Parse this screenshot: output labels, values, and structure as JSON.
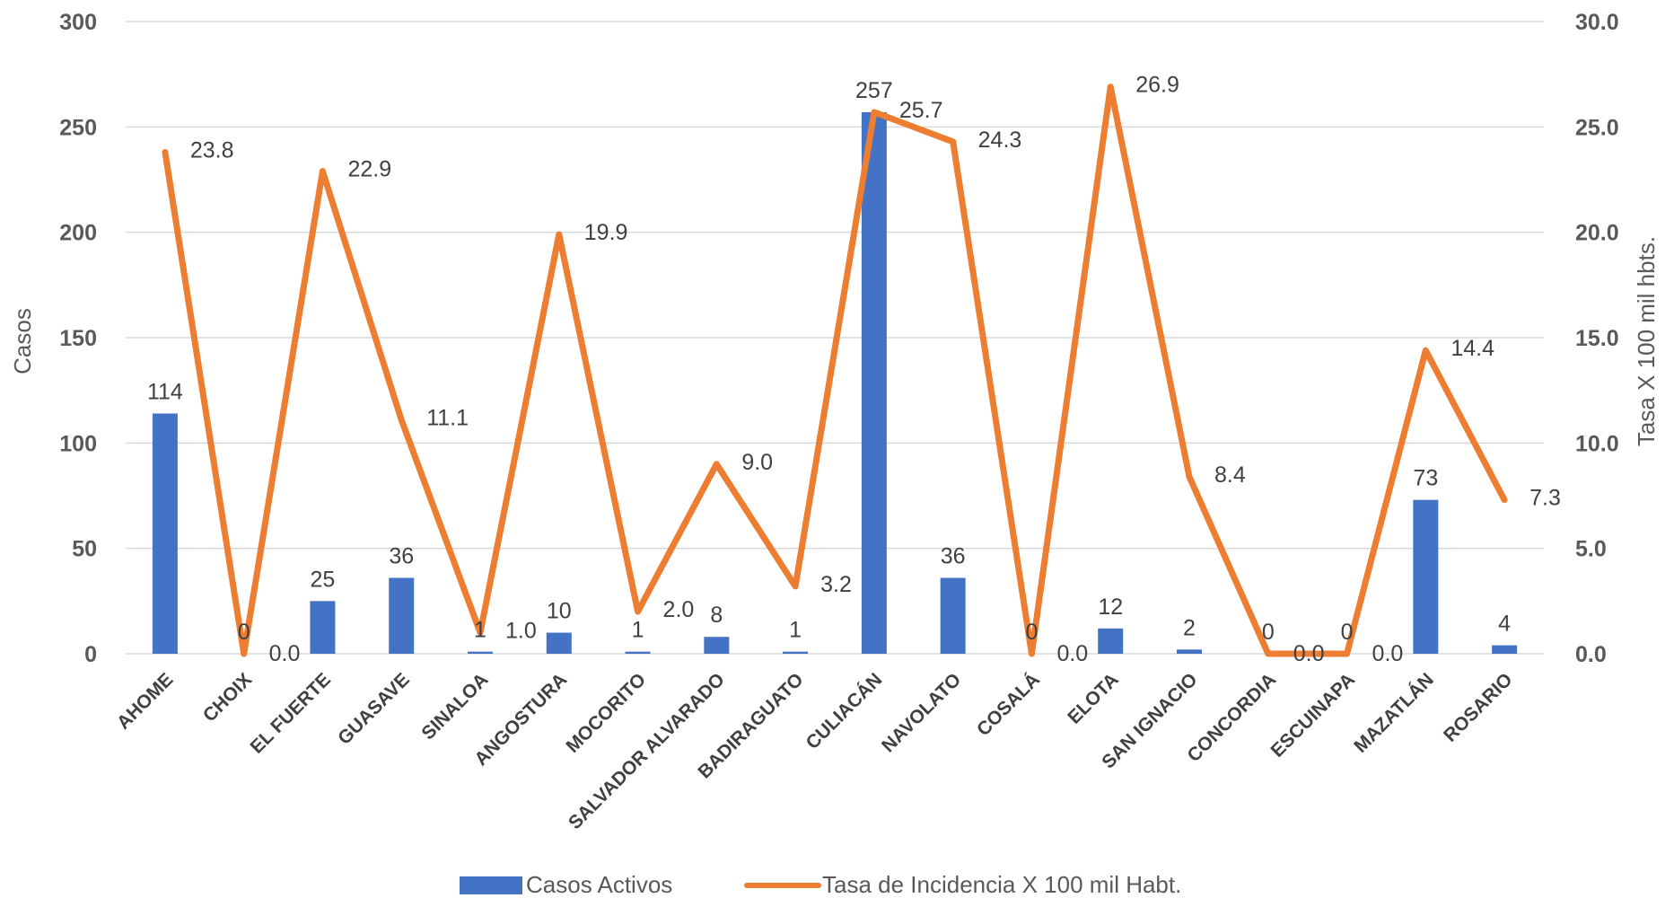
{
  "chart_data": {
    "type": "bar",
    "categories": [
      "AHOME",
      "CHOIX",
      "EL FUERTE",
      "GUASAVE",
      "SINALOA",
      "ANGOSTURA",
      "MOCORITO",
      "SALVADOR ALVARADO",
      "BADIRAGUATO",
      "CULIACÁN",
      "NAVOLATO",
      "COSALÁ",
      "ELOTA",
      "SAN IGNACIO",
      "CONCORDIA",
      "ESCUINAPA",
      "MAZATLÁN",
      "ROSARIO"
    ],
    "series": [
      {
        "name": "Casos Activos",
        "type": "bar",
        "axis": "left",
        "color": "#4472C4",
        "values": [
          114,
          0,
          25,
          36,
          1,
          10,
          1,
          8,
          1,
          257,
          36,
          0,
          12,
          2,
          0,
          0,
          73,
          4
        ],
        "labels": [
          "114",
          "0",
          "25",
          "36",
          "1",
          "10",
          "1",
          "8",
          "1",
          "257",
          "36",
          "0",
          "12",
          "2",
          "0",
          "0",
          "73",
          "4"
        ]
      },
      {
        "name": "Tasa de Incidencia X 100 mil Habt.",
        "type": "line",
        "axis": "right",
        "color": "#ED7D31",
        "values": [
          23.8,
          0.0,
          22.9,
          11.1,
          1.0,
          19.9,
          2.0,
          9.0,
          3.2,
          25.7,
          24.3,
          0.0,
          26.9,
          8.4,
          0.0,
          0.0,
          14.4,
          7.3
        ],
        "labels": [
          "23.8",
          "0.0",
          "22.9",
          "11.1",
          "1.0",
          "19.9",
          "2.0",
          "9.0",
          "3.2",
          "25.7",
          "24.3",
          "0.0",
          "26.9",
          "8.4",
          "0.0",
          "0.0",
          "14.4",
          "7.3"
        ]
      }
    ],
    "ylabel": "Casos",
    "y2label": "Tasa X 100 mil hbts.",
    "ylim": [
      0,
      300
    ],
    "y2lim": [
      0,
      30
    ],
    "yticks": [
      "0",
      "50",
      "100",
      "150",
      "200",
      "250",
      "300"
    ],
    "y2ticks": [
      "0.0",
      "5.0",
      "10.0",
      "15.0",
      "20.0",
      "25.0",
      "30.0"
    ],
    "grid": true,
    "legend": "bottom"
  }
}
